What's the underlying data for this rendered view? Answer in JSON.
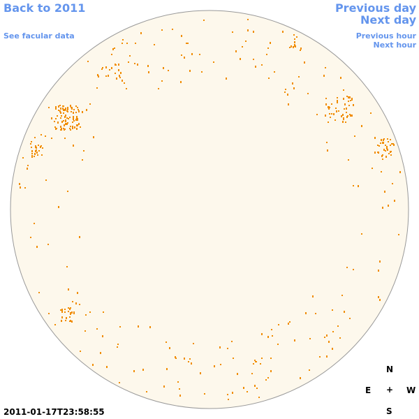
{
  "header": {
    "back_link": "Back to 2011",
    "data_link": "See facular data",
    "prev_day": "Previous day",
    "next_day": "Next day",
    "prev_hour": "Previous hour",
    "next_hour": "Next hour"
  },
  "timestamp": "2011-01-17T23:58:55",
  "compass": {
    "north": "N",
    "east": "E",
    "center": "+",
    "west": "W",
    "south": "S"
  }
}
